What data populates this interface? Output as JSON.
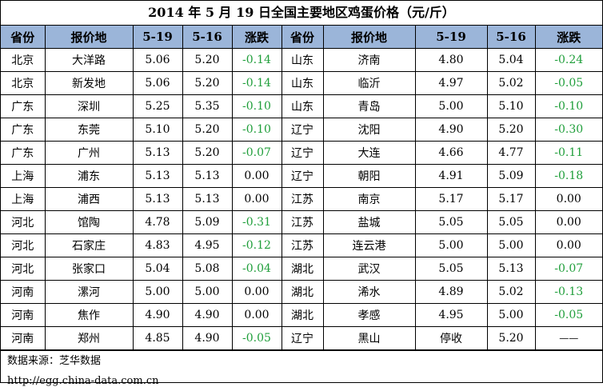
{
  "title": "2014 年 5 月 19 日全国主要地区鸡蛋价格（元/斤）",
  "headers": [
    "省份",
    "报价地",
    "5-19",
    "5-16",
    "涨跌",
    "省份",
    "报价地",
    "5-19",
    "5-16",
    "涨跌"
  ],
  "rows": [
    [
      "北京",
      "大洋路",
      "5.06",
      "5.20",
      "-0.14",
      "山东",
      "济南",
      "4.80",
      "5.04",
      "-0.24"
    ],
    [
      "北京",
      "新发地",
      "5.06",
      "5.20",
      "-0.14",
      "山东",
      "临沂",
      "4.97",
      "5.02",
      "-0.05"
    ],
    [
      "广东",
      "深圳",
      "5.25",
      "5.35",
      "-0.10",
      "山东",
      "青岛",
      "5.00",
      "5.10",
      "-0.10"
    ],
    [
      "广东",
      "东莞",
      "5.10",
      "5.20",
      "-0.10",
      "辽宁",
      "沈阳",
      "4.90",
      "5.20",
      "-0.30"
    ],
    [
      "广东",
      "广州",
      "5.13",
      "5.20",
      "-0.07",
      "辽宁",
      "大连",
      "4.66",
      "4.77",
      "-0.11"
    ],
    [
      "上海",
      "浦东",
      "5.13",
      "5.13",
      "0.00",
      "辽宁",
      "朝阳",
      "4.91",
      "5.09",
      "-0.18"
    ],
    [
      "上海",
      "浦西",
      "5.13",
      "5.13",
      "0.00",
      "江苏",
      "南京",
      "5.17",
      "5.17",
      "0.00"
    ],
    [
      "河北",
      "馆陶",
      "4.78",
      "5.09",
      "-0.31",
      "江苏",
      "盐城",
      "5.05",
      "5.05",
      "0.00"
    ],
    [
      "河北",
      "石家庄",
      "4.83",
      "4.95",
      "-0.12",
      "江苏",
      "连云港",
      "5.00",
      "5.00",
      "0.00"
    ],
    [
      "河北",
      "张家口",
      "5.04",
      "5.08",
      "-0.04",
      "湖北",
      "武汉",
      "5.05",
      "5.13",
      "-0.07"
    ],
    [
      "河南",
      "漯河",
      "5.00",
      "5.00",
      "0.00",
      "湖北",
      "浠水",
      "4.89",
      "5.02",
      "-0.13"
    ],
    [
      "河南",
      "焦作",
      "4.90",
      "4.90",
      "0.00",
      "湖北",
      "孝感",
      "4.95",
      "5.00",
      "-0.05"
    ],
    [
      "河南",
      "郑州",
      "4.85",
      "4.90",
      "-0.05",
      "辽宁",
      "黑山",
      "停收",
      "5.20",
      "——"
    ]
  ],
  "footer": {
    "source": "数据来源：芝华数据",
    "url": "http://egg.china-data.com.cn"
  },
  "colors": {
    "header_bg": "#9bb5d9",
    "negative_text": "#1f9e3a"
  }
}
